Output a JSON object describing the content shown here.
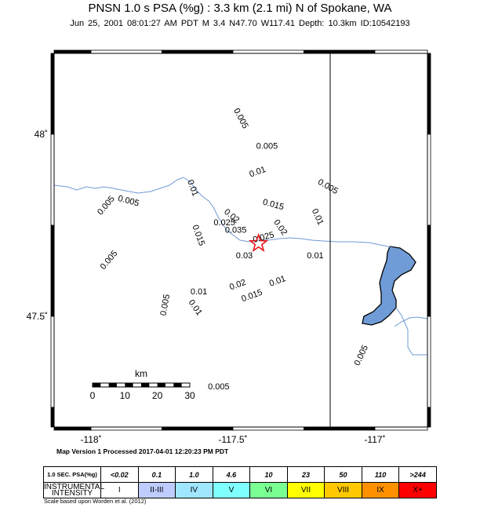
{
  "header": {
    "title": "PNSN 1.0 s PSA (%g) : 3.3 km (2.1 mi) N of Spokane, WA",
    "subtitle": "Jun 25, 2001 08:01:27 AM PDT   M 3.4   N47.70 W117.41   Depth: 10.3km   ID:10542193"
  },
  "map": {
    "lon_ticks": [
      {
        "value": -118,
        "label": "-118˚"
      },
      {
        "value": -117.5,
        "label": "-117.5˚"
      },
      {
        "value": -117,
        "label": "-117˚"
      }
    ],
    "lat_ticks": [
      {
        "value": 48,
        "label": "48˚"
      },
      {
        "value": 47.5,
        "label": "47.5˚"
      }
    ],
    "scale_bar": {
      "unit": "km",
      "labels": [
        "0",
        "10",
        "20",
        "30"
      ]
    },
    "epicenter": {
      "lon": -117.41,
      "lat": 47.7,
      "symbol": "star-icon",
      "color": "#e2171d"
    },
    "water_color": "#6f9bd6",
    "river_color": "#6f9bd6",
    "contours": [
      {
        "label": "0.005",
        "lon": -117.48,
        "lat": 48.04,
        "rot": 62
      },
      {
        "label": "0.005",
        "lon": -117.38,
        "lat": 47.96,
        "rot": 0
      },
      {
        "label": "0.01",
        "lon": -117.41,
        "lat": 47.89,
        "rot": -20
      },
      {
        "label": "0.005",
        "lon": -117.17,
        "lat": 47.85,
        "rot": 30
      },
      {
        "label": "0.01",
        "lon": -117.65,
        "lat": 47.85,
        "rot": 70
      },
      {
        "label": "0.005",
        "lon": -117.87,
        "lat": 47.81,
        "rot": 15
      },
      {
        "label": "0.005",
        "lon": -117.94,
        "lat": 47.8,
        "rot": -50
      },
      {
        "label": "0.015",
        "lon": -117.36,
        "lat": 47.8,
        "rot": 15
      },
      {
        "label": "0.01",
        "lon": -117.21,
        "lat": 47.77,
        "rot": 65
      },
      {
        "label": "0.02",
        "lon": -117.51,
        "lat": 47.77,
        "rot": 40
      },
      {
        "label": "0.025",
        "lon": -117.53,
        "lat": 47.75,
        "rot": 0
      },
      {
        "label": "0.035",
        "lon": -117.49,
        "lat": 47.73,
        "rot": 0
      },
      {
        "label": "0.02",
        "lon": -117.34,
        "lat": 47.74,
        "rot": 55
      },
      {
        "label": "0.015",
        "lon": -117.63,
        "lat": 47.72,
        "rot": 70
      },
      {
        "label": "0.025",
        "lon": -117.39,
        "lat": 47.71,
        "rot": -15
      },
      {
        "label": "0.03",
        "lon": -117.46,
        "lat": 47.66,
        "rot": 0
      },
      {
        "label": "0.01",
        "lon": -117.21,
        "lat": 47.66,
        "rot": 0
      },
      {
        "label": "0.005",
        "lon": -117.93,
        "lat": 47.65,
        "rot": -50
      },
      {
        "label": "0.01",
        "lon": -117.34,
        "lat": 47.59,
        "rot": -20
      },
      {
        "label": "0.02",
        "lon": -117.48,
        "lat": 47.58,
        "rot": -20
      },
      {
        "label": "0.01",
        "lon": -117.62,
        "lat": 47.56,
        "rot": 0
      },
      {
        "label": "0.015",
        "lon": -117.43,
        "lat": 47.55,
        "rot": -20
      },
      {
        "label": "0.005",
        "lon": -117.73,
        "lat": 47.53,
        "rot": -80
      },
      {
        "label": "0.01",
        "lon": -117.64,
        "lat": 47.52,
        "rot": 55
      },
      {
        "label": "0.005",
        "lon": -117.04,
        "lat": 47.39,
        "rot": -65
      },
      {
        "label": "0.005",
        "lon": -117.55,
        "lat": 47.3,
        "rot": 0
      }
    ]
  },
  "footer": {
    "processed": "Map Version 1 Processed 2017-04-01 12:20:23 PM PDT",
    "credit": "Scale based upon Worden et al. (2012)"
  },
  "legend": {
    "header_psa": "1.0 SEC. PSA(%g)",
    "header_intensity": "INSTRUMENTAL INTENSITY",
    "psa_values": [
      "<0.02",
      "0.1",
      "1.0",
      "4.6",
      "10",
      "23",
      "50",
      "110",
      ">244"
    ],
    "intensities": [
      "I",
      "II-III",
      "IV",
      "V",
      "VI",
      "VII",
      "VIII",
      "IX",
      "X+"
    ],
    "colors": [
      "#ffffff",
      "#bfccff",
      "#a0e6ff",
      "#80ffff",
      "#7aff93",
      "#ffff00",
      "#ffc800",
      "#ff9100",
      "#ff0000"
    ]
  }
}
